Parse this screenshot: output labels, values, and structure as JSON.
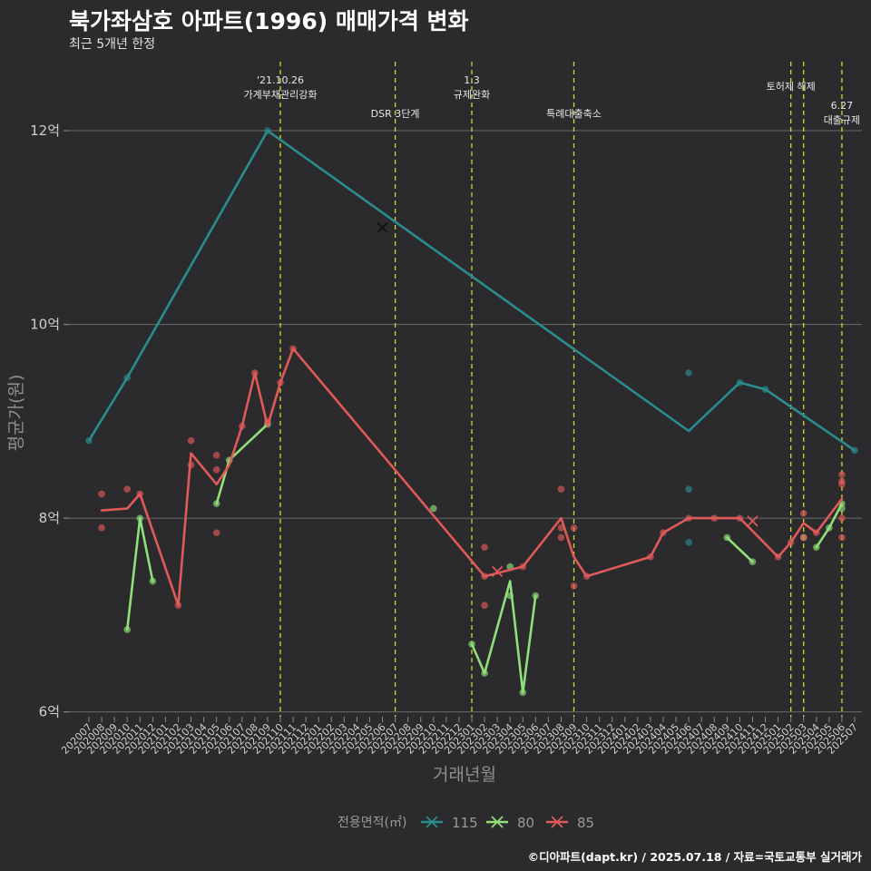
{
  "header": {
    "title": "북가좌삼호 아파트(1996) 매매가격 변화",
    "subtitle": "최근 5개년 한정"
  },
  "caption": "©디아파트(dapt.kr) / 2025.07.18 / 자료=국토교통부 실거래가",
  "chart_data": {
    "type": "line",
    "title": "북가좌삼호 아파트(1996) 매매가격 변화",
    "subtitle": "최근 5개년 한정",
    "xlabel": "거래년월",
    "ylabel": "평균가(원)",
    "ylim": [
      5.95,
      12.6
    ],
    "yticks": [
      {
        "v": 6,
        "label": "6억"
      },
      {
        "v": 8,
        "label": "8억"
      },
      {
        "v": 10,
        "label": "10억"
      },
      {
        "v": 12,
        "label": "12억"
      }
    ],
    "grid": true,
    "categories": [
      "202007",
      "202008",
      "202009",
      "202010",
      "202011",
      "202012",
      "202101",
      "202102",
      "202103",
      "202104",
      "202105",
      "202106",
      "202107",
      "202108",
      "202109",
      "202110",
      "202111",
      "202112",
      "202201",
      "202202",
      "202203",
      "202204",
      "202205",
      "202206",
      "202207",
      "202208",
      "202209",
      "202210",
      "202211",
      "202212",
      "202301",
      "202302",
      "202303",
      "202304",
      "202305",
      "202306",
      "202307",
      "202308",
      "202309",
      "202310",
      "202311",
      "202312",
      "202401",
      "202402",
      "202403",
      "202404",
      "202405",
      "202406",
      "202407",
      "202408",
      "202409",
      "202410",
      "202411",
      "202412",
      "202501",
      "202502",
      "202503",
      "202504",
      "202505",
      "202506",
      "202507"
    ],
    "series": [
      {
        "name": "115",
        "color": "#2a8c8c",
        "line": [
          [
            "202007",
            8.8
          ],
          [
            "202010",
            9.45
          ],
          [
            "202109",
            12.0
          ],
          [
            "202406",
            8.9
          ],
          [
            "202410",
            9.4
          ],
          [
            "202412",
            9.33
          ],
          [
            "202507",
            8.7
          ]
        ],
        "points": [
          [
            "202007",
            8.8
          ],
          [
            "202010",
            9.45
          ],
          [
            "202109",
            12.0
          ],
          [
            "202406",
            9.5
          ],
          [
            "202406",
            8.3
          ],
          [
            "202406",
            7.75
          ],
          [
            "202410",
            9.4
          ],
          [
            "202412",
            9.33
          ],
          [
            "202507",
            8.7
          ]
        ],
        "cancelled": [
          [
            "202206",
            11.0
          ]
        ]
      },
      {
        "name": "80",
        "color": "#8fe07a",
        "line_segments": [
          [
            [
              "202010",
              6.85
            ],
            [
              "202011",
              8.0
            ],
            [
              "202012",
              7.35
            ]
          ],
          [
            [
              "202105",
              8.15
            ],
            [
              "202106",
              8.6
            ],
            [
              "202109",
              8.97
            ]
          ],
          [
            [
              "202301",
              6.7
            ],
            [
              "202302",
              6.4
            ],
            [
              "202304",
              7.35
            ],
            [
              "202305",
              6.2
            ],
            [
              "202306",
              7.2
            ]
          ],
          [
            [
              "202409",
              7.8
            ],
            [
              "202411",
              7.55
            ]
          ],
          [
            [
              "202504",
              7.7
            ],
            [
              "202505",
              7.9
            ],
            [
              "202506",
              8.15
            ]
          ]
        ],
        "points": [
          [
            "202010",
            6.85
          ],
          [
            "202011",
            8.0
          ],
          [
            "202012",
            7.35
          ],
          [
            "202105",
            8.15
          ],
          [
            "202106",
            8.6
          ],
          [
            "202109",
            8.97
          ],
          [
            "202210",
            8.1
          ],
          [
            "202301",
            6.7
          ],
          [
            "202302",
            6.4
          ],
          [
            "202304",
            7.5
          ],
          [
            "202304",
            7.2
          ],
          [
            "202305",
            6.2
          ],
          [
            "202306",
            7.2
          ],
          [
            "202409",
            7.8
          ],
          [
            "202411",
            7.55
          ],
          [
            "202503",
            7.8
          ],
          [
            "202504",
            7.7
          ],
          [
            "202505",
            7.9
          ],
          [
            "202506",
            8.1
          ],
          [
            "202506",
            8.15
          ]
        ]
      },
      {
        "name": "85",
        "color": "#e05a5a",
        "line": [
          [
            "202008",
            8.08
          ],
          [
            "202010",
            8.1
          ],
          [
            "202011",
            8.25
          ],
          [
            "202102",
            7.1
          ],
          [
            "202103",
            8.67
          ],
          [
            "202105",
            8.35
          ],
          [
            "202106",
            8.55
          ],
          [
            "202107",
            8.95
          ],
          [
            "202108",
            9.5
          ],
          [
            "202109",
            8.95
          ],
          [
            "202110",
            9.4
          ],
          [
            "202111",
            9.75
          ],
          [
            "202302",
            7.4
          ],
          [
            "202305",
            7.5
          ],
          [
            "202308",
            8.0
          ],
          [
            "202309",
            7.6
          ],
          [
            "202310",
            7.4
          ],
          [
            "202403",
            7.6
          ],
          [
            "202404",
            7.85
          ],
          [
            "202406",
            8.0
          ],
          [
            "202408",
            8.0
          ],
          [
            "202410",
            8.0
          ],
          [
            "202501",
            7.6
          ],
          [
            "202502",
            7.75
          ],
          [
            "202503",
            7.95
          ],
          [
            "202504",
            7.85
          ],
          [
            "202506",
            8.2
          ]
        ],
        "points": [
          [
            "202008",
            8.25
          ],
          [
            "202008",
            7.9
          ],
          [
            "202010",
            8.3
          ],
          [
            "202011",
            8.25
          ],
          [
            "202102",
            7.1
          ],
          [
            "202103",
            8.8
          ],
          [
            "202103",
            8.55
          ],
          [
            "202105",
            8.65
          ],
          [
            "202105",
            8.5
          ],
          [
            "202105",
            7.85
          ],
          [
            "202107",
            8.95
          ],
          [
            "202108",
            9.5
          ],
          [
            "202109",
            9.0
          ],
          [
            "202110",
            9.4
          ],
          [
            "202111",
            9.75
          ],
          [
            "202302",
            7.7
          ],
          [
            "202302",
            7.1
          ],
          [
            "202302",
            7.4
          ],
          [
            "202305",
            7.5
          ],
          [
            "202308",
            8.3
          ],
          [
            "202308",
            7.9
          ],
          [
            "202308",
            7.8
          ],
          [
            "202309",
            7.9
          ],
          [
            "202309",
            7.3
          ],
          [
            "202310",
            7.4
          ],
          [
            "202403",
            7.6
          ],
          [
            "202404",
            7.85
          ],
          [
            "202406",
            8.0
          ],
          [
            "202408",
            8.0
          ],
          [
            "202410",
            8.0
          ],
          [
            "202501",
            7.6
          ],
          [
            "202502",
            7.75
          ],
          [
            "202503",
            8.05
          ],
          [
            "202503",
            7.8
          ],
          [
            "202504",
            7.85
          ],
          [
            "202506",
            8.45
          ],
          [
            "202506",
            8.38
          ],
          [
            "202506",
            8.35
          ],
          [
            "202506",
            8.0
          ],
          [
            "202506",
            7.8
          ]
        ],
        "cancelled": [
          [
            "202303",
            7.45
          ],
          [
            "202411",
            7.97
          ]
        ]
      }
    ],
    "events": [
      {
        "at": "202110",
        "lines": [
          "'21.10.26",
          "가계부채관리강화"
        ],
        "row": 0
      },
      {
        "at": "202207",
        "lines": [
          "DSR 3단계"
        ],
        "row": 2
      },
      {
        "at": "202301",
        "lines": [
          "1.3",
          "규제완화"
        ],
        "row": 0
      },
      {
        "at": "202309",
        "lines": [
          "특례대출축소"
        ],
        "row": 2
      },
      {
        "at": "202502",
        "lines": [
          "토허제 해제"
        ],
        "row": 1
      },
      {
        "at": "202503",
        "lines": [],
        "row": 1
      },
      {
        "at": "202506",
        "lines": [
          "6.27",
          "대출규제"
        ],
        "row": 3
      }
    ],
    "legend": {
      "title": "전용면적(㎡)",
      "placement": "bottom",
      "items": [
        "115",
        "80",
        "85"
      ]
    }
  }
}
